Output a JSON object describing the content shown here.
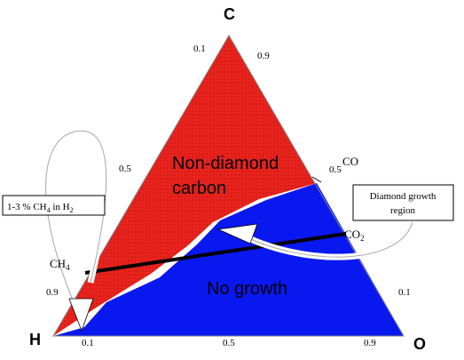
{
  "vertices": {
    "top": "C",
    "left": "H",
    "right": "O"
  },
  "ticks": {
    "left_edge": {
      "a": "0.1",
      "b": "0.5",
      "c": "0.9"
    },
    "right_edge": {
      "a": "0.9",
      "b": "0.5",
      "c": "0.1"
    },
    "bottom_edge": {
      "a": "0.1",
      "b": "0.5",
      "c": "0.9"
    }
  },
  "regions": {
    "non_diamond_line1": "Non-diamond",
    "non_diamond_line2": "carbon",
    "no_growth": "No growth"
  },
  "species": {
    "co": "CO",
    "co2": "CO",
    "co2_sub": "2",
    "ch4": "CH",
    "ch4_sub": "4"
  },
  "callouts": {
    "left_box": {
      "p1": "1-3 % CH",
      "sub1": "4",
      "p2": " in H",
      "sub2": "2"
    },
    "right_box": {
      "line1": "Diamond growth",
      "line2": "region"
    }
  },
  "colors": {
    "non_diamond_region": "#e8231d",
    "no_growth_region": "#0a18f0",
    "diamond_window": "#ffffff",
    "line": "#000000"
  }
}
